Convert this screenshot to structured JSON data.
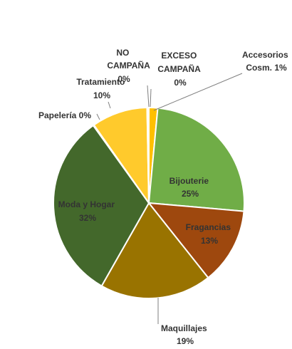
{
  "chart_data": {
    "type": "pie",
    "title": "",
    "start_angle_deg": 0,
    "direction": "clockwise",
    "slices": [
      {
        "label": "Accesorios Cosm.",
        "pct_label": "1%",
        "value": 1.5,
        "color": "#ffc000"
      },
      {
        "label": "Bijouterie",
        "pct_label": "25%",
        "value": 25,
        "color": "#70ad47"
      },
      {
        "label": "Fragancias",
        "pct_label": "13%",
        "value": 13,
        "color": "#9e480e"
      },
      {
        "label": "Maquillajes",
        "pct_label": "19%",
        "value": 19,
        "color": "#997300"
      },
      {
        "label": "Moda y Hogar",
        "pct_label": "32%",
        "value": 32,
        "color": "#43682b"
      },
      {
        "label": "Papelería",
        "pct_label": "0%",
        "value": 0.15,
        "color": "#5b9bd5"
      },
      {
        "label": "Tratamiento",
        "pct_label": "10%",
        "value": 9.5,
        "color": "#ffca2c"
      },
      {
        "label": "NO CAMPAÑA",
        "pct_label": "0%",
        "value": 0.15,
        "color": "#a5a5a5"
      },
      {
        "label": "EXCESO CAMPAÑA",
        "pct_label": "0%",
        "value": 0.15,
        "color": "#4472c4"
      }
    ],
    "legend": "none"
  },
  "labels": {
    "accesorios_l1": "Accesorios",
    "accesorios_l2": "Cosm. 1%",
    "bijouterie_l1": "Bijouterie",
    "bijouterie_l2": "25%",
    "fragancias_l1": "Fragancias",
    "fragancias_l2": "13%",
    "maquillajes_l1": "Maquillajes",
    "maquillajes_l2": "19%",
    "moda_l1": "Moda y Hogar",
    "moda_l2": "32%",
    "papeleria": "Papelería 0%",
    "tratamiento_l1": "Tratamiento",
    "tratamiento_l2": "10%",
    "no_campana_l1": "NO",
    "no_campana_l2": "CAMPAÑA",
    "no_campana_l3": "0%",
    "exceso_l1": "EXCESO",
    "exceso_l2": "CAMPAÑA",
    "exceso_l3": "0%"
  }
}
